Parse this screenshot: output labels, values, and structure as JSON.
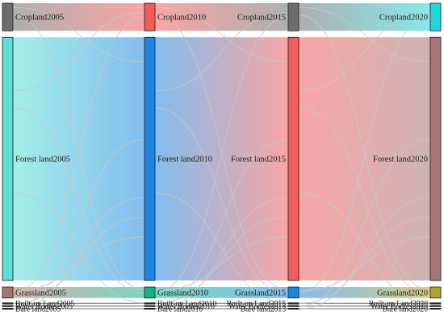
{
  "chart_data": {
    "type": "sankey",
    "title": "",
    "columns": [
      {
        "year": "2005",
        "nodes": [
          {
            "id": "cropland2005",
            "label": "Cropland2005",
            "color": "#6d6d6d",
            "value": 100
          },
          {
            "id": "forest2005",
            "label": "Forest land2005",
            "color": "#5ce0d6",
            "value": 880
          },
          {
            "id": "grassland2005",
            "label": "Grassland2005",
            "color": "#a97373",
            "value": 40
          },
          {
            "id": "builtup2005",
            "label": "Built-up Land2005",
            "color": "#2e2e2e",
            "value": 3
          },
          {
            "id": "water2005",
            "label": "Water Bodies2005",
            "color": "#2e2e2e",
            "value": 2
          },
          {
            "id": "bare2005",
            "label": "Bare land2005",
            "color": "#2e2e2e",
            "value": 2
          }
        ]
      },
      {
        "year": "2010",
        "nodes": [
          {
            "id": "cropland2010",
            "label": "Cropland2010",
            "color": "#f45b5b",
            "value": 100
          },
          {
            "id": "forest2010",
            "label": "Forest land2010",
            "color": "#1e86e0",
            "value": 880
          },
          {
            "id": "grassland2010",
            "label": "Grassland2010",
            "color": "#10b58a",
            "value": 40
          },
          {
            "id": "builtup2010",
            "label": "Built-up Land2010",
            "color": "#2e2e2e",
            "value": 3
          },
          {
            "id": "water2010",
            "label": "Water Bodies2010",
            "color": "#2e2e2e",
            "value": 2
          },
          {
            "id": "bare2010",
            "label": "Bare land2010",
            "color": "#2e2e2e",
            "value": 2
          }
        ]
      },
      {
        "year": "2015",
        "nodes": [
          {
            "id": "cropland2015",
            "label": "Cropland2015",
            "color": "#6d6d6d",
            "value": 100
          },
          {
            "id": "forest2015",
            "label": "Forest land2015",
            "color": "#f35d5d",
            "value": 880
          },
          {
            "id": "grassland2015",
            "label": "Grassland2015",
            "color": "#1e86e0",
            "value": 40
          },
          {
            "id": "builtup2015",
            "label": "Built-up Land2015",
            "color": "#2e2e2e",
            "value": 3
          },
          {
            "id": "water2015",
            "label": "Water Bodies2015",
            "color": "#2e2e2e",
            "value": 2
          },
          {
            "id": "bare2015",
            "label": "Bare land2015",
            "color": "#2e2e2e",
            "value": 2
          }
        ]
      },
      {
        "year": "2020",
        "nodes": [
          {
            "id": "cropland2020",
            "label": "Cropland2020",
            "color": "#21d7dc",
            "value": 100
          },
          {
            "id": "forest2020",
            "label": "Forest land2020",
            "color": "#a77676",
            "value": 880
          },
          {
            "id": "grassland2020",
            "label": "Grassland2020",
            "color": "#b0a52a",
            "value": 40
          },
          {
            "id": "builtup2020",
            "label": "Built-up Land2020",
            "color": "#2e2e2e",
            "value": 3
          },
          {
            "id": "water2020",
            "label": "Water Bodies2020",
            "color": "#2e2e2e",
            "value": 2
          },
          {
            "id": "bare2020",
            "label": "Bare land2020",
            "color": "#2e2e2e",
            "value": 2
          }
        ]
      }
    ],
    "link_opacity": 0.55,
    "cross_link_color": "#c9c9c9"
  }
}
